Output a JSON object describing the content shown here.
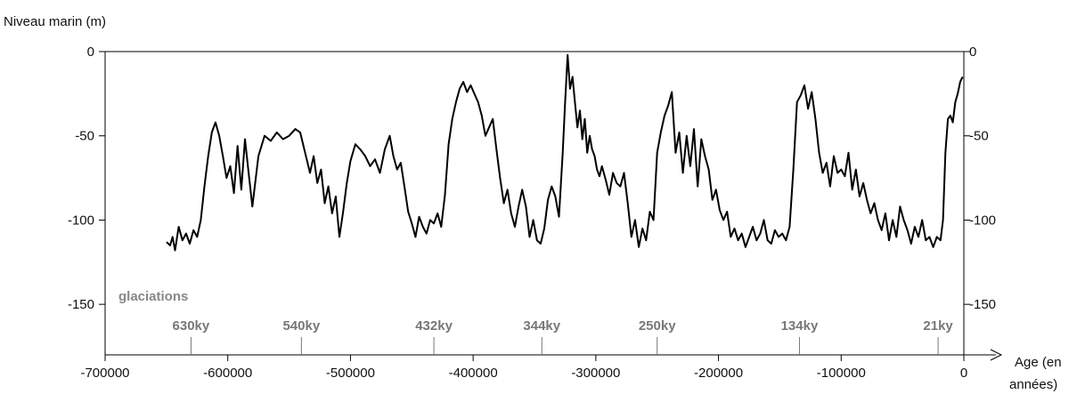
{
  "chart_data": {
    "type": "line",
    "ylabel": "Niveau marin  (m)",
    "xlabel_line1": "Age (en",
    "xlabel_line2": "années)",
    "xlim": [
      -700000,
      0
    ],
    "ylim": [
      -180,
      0
    ],
    "x_ticks": [
      -700000,
      -600000,
      -500000,
      -400000,
      -300000,
      -200000,
      -100000,
      0
    ],
    "x_tick_labels": [
      "-700000",
      "-600000",
      "-500000",
      "-400000",
      "-300000",
      "-200000",
      "-100000",
      "0"
    ],
    "y_ticks": [
      0,
      -50,
      -100,
      -150
    ],
    "y_tick_labels_left": [
      "0",
      "-50",
      "-100",
      "-150"
    ],
    "y_tick_labels_right": [
      "0",
      "-50",
      "-100",
      "-150"
    ],
    "glaciations": {
      "title": "glaciations",
      "markers": [
        {
          "x": -630000,
          "label": "630ky"
        },
        {
          "x": -540000,
          "label": "540ky"
        },
        {
          "x": -432000,
          "label": "432ky"
        },
        {
          "x": -344000,
          "label": "344ky"
        },
        {
          "x": -250000,
          "label": "250ky"
        },
        {
          "x": -134000,
          "label": "134ky"
        },
        {
          "x": -21000,
          "label": "21ky"
        }
      ]
    },
    "series": [
      {
        "x": [
          -650000,
          -647000,
          -645000,
          -643000,
          -640000,
          -637000,
          -634000,
          -631000,
          -628000,
          -625000,
          -622000,
          -619000,
          -616000,
          -613000,
          -610000,
          -607000,
          -604000,
          -601000,
          -598000,
          -595000,
          -592000,
          -589000,
          -586000,
          -583000,
          -580000,
          -575000,
          -570000,
          -565000,
          -560000,
          -555000,
          -550000,
          -545000,
          -541000,
          -537000,
          -533000,
          -530000,
          -527000,
          -524000,
          -521000,
          -518000,
          -515000,
          -512000,
          -509000,
          -506000,
          -503000,
          -500000,
          -496000,
          -492000,
          -488000,
          -484000,
          -480000,
          -476000,
          -472000,
          -468000,
          -465000,
          -462000,
          -459000,
          -456000,
          -453000,
          -450000,
          -447000,
          -444000,
          -441000,
          -438000,
          -435000,
          -432000,
          -429000,
          -426000,
          -423000,
          -420000,
          -417000,
          -414000,
          -411000,
          -408000,
          -405000,
          -402000,
          -399000,
          -396000,
          -393000,
          -390000,
          -387000,
          -384000,
          -381000,
          -378000,
          -375000,
          -372000,
          -369000,
          -366000,
          -363000,
          -360000,
          -357000,
          -354000,
          -351000,
          -348000,
          -345000,
          -342000,
          -339000,
          -336000,
          -333000,
          -330000,
          -327000,
          -325000,
          -323000,
          -321000,
          -319000,
          -317000,
          -315000,
          -313000,
          -311000,
          -309000,
          -307000,
          -305000,
          -303000,
          -301000,
          -299000,
          -297000,
          -295000,
          -292000,
          -289000,
          -286000,
          -283000,
          -280000,
          -277000,
          -274000,
          -271000,
          -268000,
          -265000,
          -262000,
          -259000,
          -256000,
          -253000,
          -250000,
          -247000,
          -244000,
          -241000,
          -238000,
          -235000,
          -232000,
          -229000,
          -226000,
          -223000,
          -220000,
          -217000,
          -214000,
          -211000,
          -208000,
          -205000,
          -202000,
          -199000,
          -196000,
          -193000,
          -190000,
          -187000,
          -184000,
          -181000,
          -178000,
          -175000,
          -172000,
          -169000,
          -166000,
          -163000,
          -160000,
          -157000,
          -154000,
          -151000,
          -148000,
          -145000,
          -142000,
          -139000,
          -136000,
          -133000,
          -130000,
          -127000,
          -124000,
          -121000,
          -118000,
          -115000,
          -112000,
          -109000,
          -106000,
          -103000,
          -100000,
          -97000,
          -94000,
          -91000,
          -88000,
          -85000,
          -82000,
          -79000,
          -76000,
          -73000,
          -70000,
          -67000,
          -64000,
          -61000,
          -58000,
          -55000,
          -52000,
          -49000,
          -46000,
          -43000,
          -40000,
          -37000,
          -34000,
          -31000,
          -28000,
          -25000,
          -22000,
          -19000,
          -17000,
          -15000,
          -13000,
          -11000,
          -9000,
          -7000,
          -5000,
          -3000,
          -1000
        ],
        "y": [
          -113,
          -115,
          -110,
          -118,
          -104,
          -112,
          -108,
          -114,
          -106,
          -110,
          -100,
          -80,
          -62,
          -48,
          -42,
          -50,
          -62,
          -75,
          -68,
          -84,
          -56,
          -82,
          -52,
          -72,
          -92,
          -62,
          -50,
          -53,
          -48,
          -52,
          -50,
          -46,
          -48,
          -60,
          -72,
          -62,
          -78,
          -70,
          -90,
          -80,
          -96,
          -86,
          -110,
          -95,
          -78,
          -65,
          -55,
          -58,
          -62,
          -68,
          -64,
          -72,
          -58,
          -50,
          -62,
          -70,
          -66,
          -80,
          -95,
          -102,
          -110,
          -98,
          -104,
          -108,
          -100,
          -102,
          -96,
          -104,
          -85,
          -55,
          -40,
          -30,
          -22,
          -18,
          -24,
          -20,
          -25,
          -30,
          -38,
          -50,
          -45,
          -40,
          -58,
          -75,
          -90,
          -82,
          -96,
          -104,
          -92,
          -82,
          -92,
          -110,
          -100,
          -112,
          -114,
          -105,
          -88,
          -80,
          -86,
          -98,
          -60,
          -30,
          -2,
          -22,
          -15,
          -30,
          -45,
          -35,
          -52,
          -40,
          -60,
          -50,
          -58,
          -62,
          -70,
          -74,
          -68,
          -76,
          -85,
          -72,
          -78,
          -80,
          -72,
          -90,
          -110,
          -100,
          -116,
          -105,
          -112,
          -95,
          -100,
          -60,
          -48,
          -38,
          -32,
          -24,
          -60,
          -48,
          -72,
          -50,
          -68,
          -46,
          -80,
          -52,
          -62,
          -70,
          -88,
          -82,
          -94,
          -100,
          -95,
          -110,
          -105,
          -112,
          -108,
          -116,
          -110,
          -104,
          -112,
          -108,
          -100,
          -112,
          -114,
          -106,
          -110,
          -108,
          -112,
          -104,
          -70,
          -30,
          -26,
          -20,
          -34,
          -24,
          -40,
          -60,
          -72,
          -66,
          -80,
          -62,
          -72,
          -70,
          -74,
          -60,
          -82,
          -70,
          -86,
          -78,
          -88,
          -96,
          -90,
          -100,
          -106,
          -96,
          -112,
          -100,
          -110,
          -92,
          -100,
          -106,
          -114,
          -104,
          -110,
          -100,
          -112,
          -110,
          -116,
          -110,
          -112,
          -100,
          -60,
          -40,
          -38,
          -42,
          -30,
          -25,
          -18,
          -15
        ]
      }
    ]
  }
}
